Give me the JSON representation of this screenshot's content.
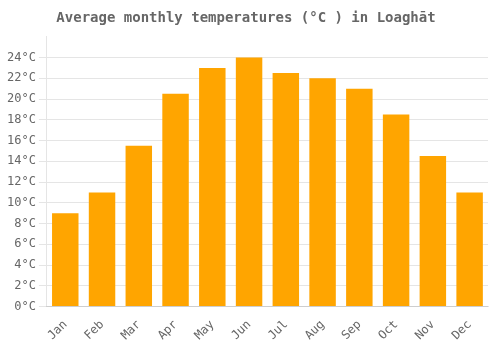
{
  "chart_data": {
    "type": "bar",
    "title": "Average monthly temperatures (°C ) in Loaghāt",
    "categories": [
      "Jan",
      "Feb",
      "Mar",
      "Apr",
      "May",
      "Jun",
      "Jul",
      "Aug",
      "Sep",
      "Oct",
      "Nov",
      "Dec"
    ],
    "values": [
      9.0,
      11.0,
      15.5,
      20.5,
      23.0,
      24.0,
      22.5,
      22.0,
      21.0,
      18.5,
      14.5,
      11.0
    ],
    "color": "#FFA500",
    "ylim": [
      0,
      26
    ],
    "yticks": [
      {
        "value": 0,
        "label": "0°C"
      },
      {
        "value": 2,
        "label": "2°C"
      },
      {
        "value": 4,
        "label": "4°C"
      },
      {
        "value": 6,
        "label": "6°C"
      },
      {
        "value": 8,
        "label": "8°C"
      },
      {
        "value": 10,
        "label": "10°C"
      },
      {
        "value": 12,
        "label": "12°C"
      },
      {
        "value": 14,
        "label": "14°C"
      },
      {
        "value": 16,
        "label": "16°C"
      },
      {
        "value": 18,
        "label": "18°C"
      },
      {
        "value": 20,
        "label": "20°C"
      },
      {
        "value": 22,
        "label": "22°C"
      },
      {
        "value": 24,
        "label": "24°C"
      }
    ],
    "grid": true
  }
}
